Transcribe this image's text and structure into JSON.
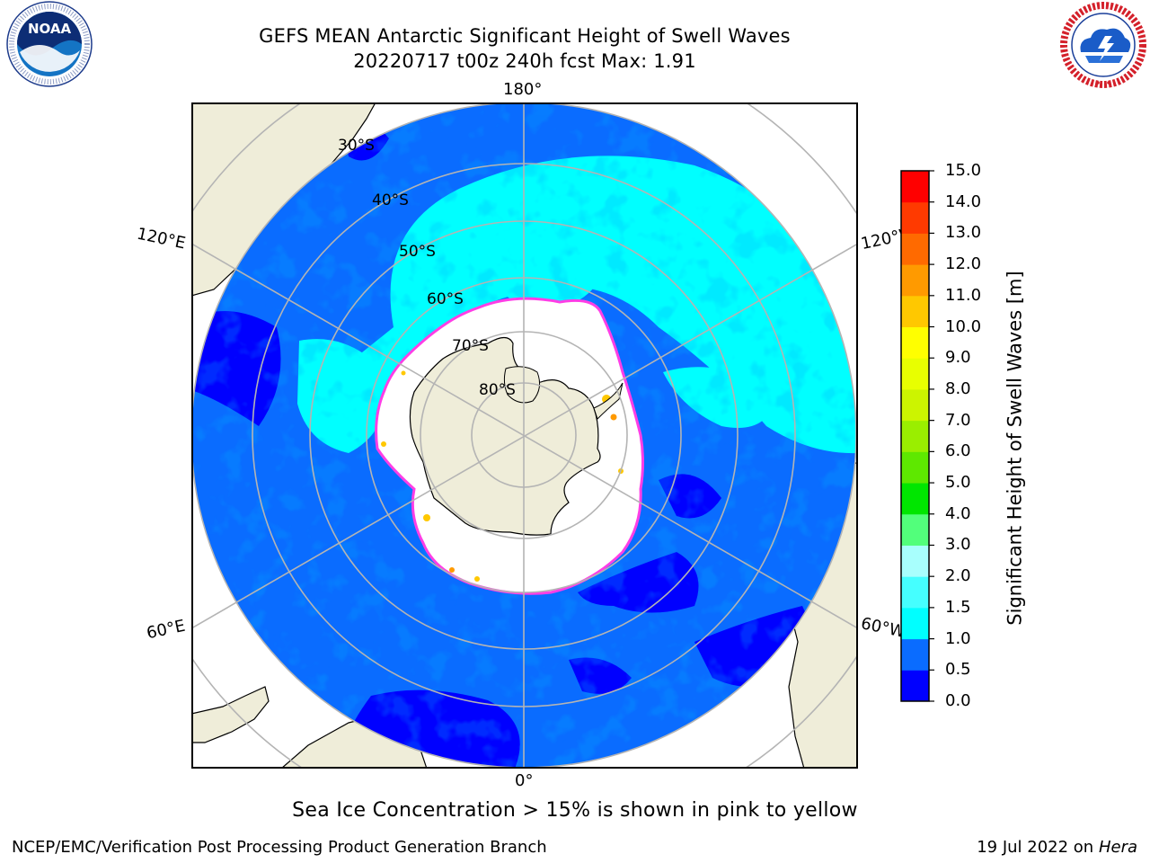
{
  "header": {
    "title_line1": "GEFS MEAN Antarctic Significant Height of Swell Waves",
    "title_line2": "20220717 t00z 240h fcst   Max: 1.91"
  },
  "logos": {
    "left": {
      "acronym": "NOAA",
      "ring_text": "NATIONAL OCEANIC AND ATMOSPHERIC ADMINISTRATION · U.S. DEPARTMENT OF COMMERCE"
    },
    "right": {
      "ring_text": "NATIONAL WEATHER SERVICE"
    }
  },
  "map": {
    "projection": "south-polar-stereographic",
    "longitude_labels": [
      "180°",
      "120°E",
      "120°W",
      "60°E",
      "60°W",
      "0°"
    ],
    "latitude_labels": [
      "30°S",
      "40°S",
      "50°S",
      "60°S",
      "70°S",
      "80°S"
    ],
    "colors": {
      "land": "#efedd9",
      "coast": "#000000",
      "grid": "#b4b4b4",
      "ice": "#ffffff",
      "ice_edge": "#ff3ee6"
    }
  },
  "chart_data": {
    "type": "heatmap",
    "title": "GEFS MEAN Antarctic Significant Height of Swell Waves",
    "subtitle": "20220717 t00z 240h fcst   Max: 1.91",
    "variable": "Significant Height of Swell Waves [m]",
    "max_value": 1.91,
    "colorbar": {
      "label": "Significant Height of Swell Waves [m]",
      "ticks": [
        "0.0",
        "0.5",
        "1.0",
        "1.5",
        "2.0",
        "3.0",
        "4.0",
        "5.0",
        "6.0",
        "7.0",
        "8.0",
        "9.0",
        "10.0",
        "11.0",
        "12.0",
        "13.0",
        "14.0",
        "15.0"
      ],
      "bounds": [
        0.0,
        0.5,
        1.0,
        1.5,
        2.0,
        3.0,
        4.0,
        5.0,
        6.0,
        7.0,
        8.0,
        9.0,
        10.0,
        11.0,
        12.0,
        13.0,
        14.0,
        15.0
      ],
      "colors": [
        "#0000ff",
        "#0a6cff",
        "#00ffff",
        "#45ffff",
        "#a8fffd",
        "#52ff7b",
        "#00e600",
        "#5ee800",
        "#9aee00",
        "#ccf400",
        "#e8ff00",
        "#ffff00",
        "#ffc800",
        "#ff9a00",
        "#ff6a00",
        "#ff3a00",
        "#ff0000"
      ]
    }
  },
  "annotations": {
    "sea_ice_note": "Sea Ice Concentration > 15% is shown in pink to yellow",
    "credit_left": "NCEP/EMC/Verification Post Processing Product Generation Branch",
    "credit_right_prefix": "19 Jul 2022 on ",
    "credit_right_machine": "Hera"
  }
}
